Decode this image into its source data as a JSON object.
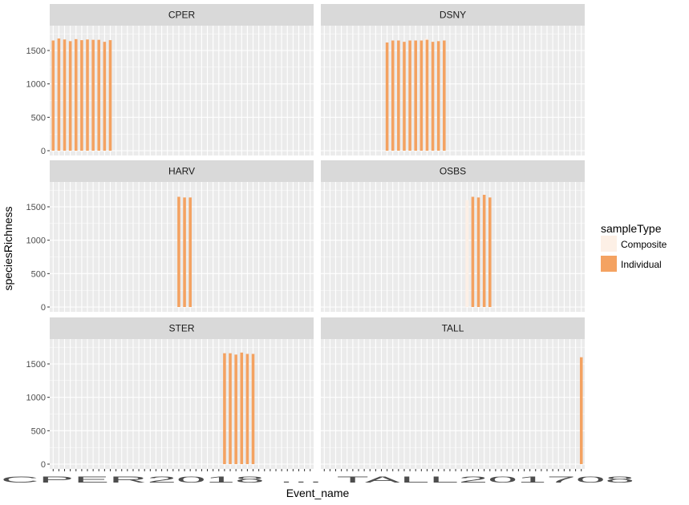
{
  "chart_data": {
    "type": "bar",
    "facet_wrap": {
      "ncol": 2
    },
    "xlabel": "Event_name",
    "ylabel": "speciesRichness",
    "ylim": [
      0,
      1800
    ],
    "yticks": [
      0,
      500,
      1000,
      1500
    ],
    "x_tick_labels_overlapping": "CPER2018 ... TALL201708",
    "num_x_positions": 46,
    "legend": {
      "title": "sampleType",
      "placement": "right",
      "entries": [
        {
          "name": "Composite",
          "color": "#fdf0e6"
        },
        {
          "name": "Individual",
          "color": "#f4a261"
        }
      ]
    },
    "colors": {
      "Composite": "#fdf0e6",
      "Individual": "#f4a261",
      "panel_bg": "#ebebeb",
      "strip_bg": "#d9d9d9",
      "grid": "#ffffff"
    },
    "panels": [
      {
        "site": "CPER",
        "bars": [
          {
            "i": 0,
            "type": "Individual",
            "value": 1650
          },
          {
            "i": 1,
            "type": "Individual",
            "value": 1680
          },
          {
            "i": 2,
            "type": "Individual",
            "value": 1665
          },
          {
            "i": 3,
            "type": "Individual",
            "value": 1640
          },
          {
            "i": 4,
            "type": "Individual",
            "value": 1670
          },
          {
            "i": 5,
            "type": "Individual",
            "value": 1655
          },
          {
            "i": 6,
            "type": "Individual",
            "value": 1665
          },
          {
            "i": 7,
            "type": "Individual",
            "value": 1660
          },
          {
            "i": 8,
            "type": "Individual",
            "value": 1660
          },
          {
            "i": 9,
            "type": "Individual",
            "value": 1630
          },
          {
            "i": 10,
            "type": "Individual",
            "value": 1655
          }
        ]
      },
      {
        "site": "DSNY",
        "bars": [
          {
            "i": 11,
            "type": "Individual",
            "value": 1620
          },
          {
            "i": 12,
            "type": "Individual",
            "value": 1650
          },
          {
            "i": 13,
            "type": "Individual",
            "value": 1650
          },
          {
            "i": 14,
            "type": "Individual",
            "value": 1630
          },
          {
            "i": 15,
            "type": "Individual",
            "value": 1650
          },
          {
            "i": 16,
            "type": "Individual",
            "value": 1650
          },
          {
            "i": 17,
            "type": "Individual",
            "value": 1650
          },
          {
            "i": 18,
            "type": "Composite",
            "value": 1680
          },
          {
            "i": 18,
            "type": "Individual",
            "value": 1660
          },
          {
            "i": 19,
            "type": "Individual",
            "value": 1630
          },
          {
            "i": 20,
            "type": "Individual",
            "value": 1640
          },
          {
            "i": 21,
            "type": "Individual",
            "value": 1650
          }
        ]
      },
      {
        "site": "HARV",
        "bars": [
          {
            "i": 22,
            "type": "Individual",
            "value": 1650
          },
          {
            "i": 23,
            "type": "Individual",
            "value": 1640
          },
          {
            "i": 24,
            "type": "Individual",
            "value": 1640
          }
        ]
      },
      {
        "site": "OSBS",
        "bars": [
          {
            "i": 25,
            "type": "Composite",
            "value": 1600
          },
          {
            "i": 26,
            "type": "Individual",
            "value": 1650
          },
          {
            "i": 27,
            "type": "Individual",
            "value": 1640
          },
          {
            "i": 28,
            "type": "Individual",
            "value": 1680
          },
          {
            "i": 29,
            "type": "Individual",
            "value": 1640
          }
        ]
      },
      {
        "site": "STER",
        "bars": [
          {
            "i": 30,
            "type": "Individual",
            "value": 1660
          },
          {
            "i": 31,
            "type": "Individual",
            "value": 1660
          },
          {
            "i": 32,
            "type": "Individual",
            "value": 1640
          },
          {
            "i": 33,
            "type": "Individual",
            "value": 1670
          },
          {
            "i": 34,
            "type": "Individual",
            "value": 1650
          },
          {
            "i": 35,
            "type": "Individual",
            "value": 1650
          }
        ]
      },
      {
        "site": "TALL",
        "bars": [
          {
            "i": 45,
            "type": "Individual",
            "value": 1600
          }
        ]
      }
    ]
  }
}
